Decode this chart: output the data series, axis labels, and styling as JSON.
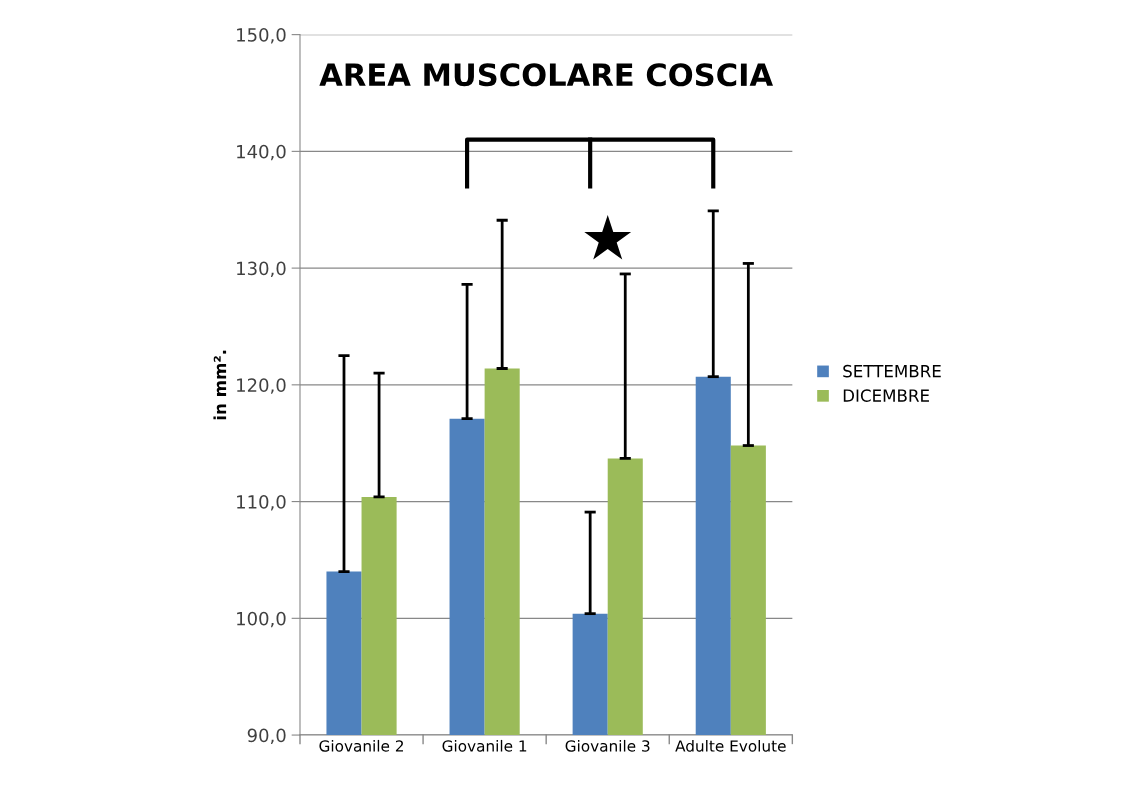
{
  "chart_data": {
    "type": "bar",
    "title": "AREA MUSCOLARE COSCIA",
    "ylabel": "in mm².",
    "categories": [
      "Giovanile 2",
      "Giovanile 1",
      "Giovanile 3",
      "Adulte Evolute"
    ],
    "series": [
      {
        "name": "SETTEMBRE",
        "color": "#4f81bd",
        "values": [
          104.0,
          117.1,
          100.4,
          120.7
        ],
        "errors": [
          [
            104.0,
            122.5
          ],
          [
            117.1,
            128.6
          ],
          [
            100.4,
            109.1
          ],
          [
            120.7,
            134.9
          ]
        ]
      },
      {
        "name": "DICEMBRE",
        "color": "#9bbb59",
        "values": [
          110.4,
          121.4,
          113.7,
          114.8
        ],
        "errors": [
          [
            110.4,
            121.0
          ],
          [
            121.4,
            134.1
          ],
          [
            113.7,
            129.5
          ],
          [
            114.8,
            130.4
          ]
        ]
      }
    ],
    "ylim": [
      90,
      150
    ],
    "yticks": [
      {
        "value": 90,
        "label": "90,0"
      },
      {
        "value": 100,
        "label": "100,0"
      },
      {
        "value": 110,
        "label": "110,0"
      },
      {
        "value": 120,
        "label": "120,0"
      },
      {
        "value": 130,
        "label": "130,0"
      },
      {
        "value": 140,
        "label": "140,0"
      },
      {
        "value": 150,
        "label": "150,0"
      }
    ],
    "grid": "y",
    "legend": "right",
    "annotations": [
      "★"
    ]
  }
}
